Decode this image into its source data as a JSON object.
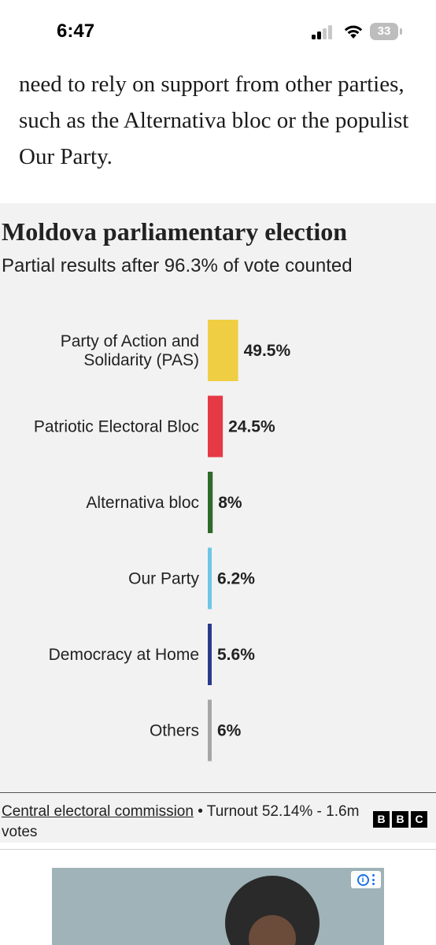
{
  "status_bar": {
    "time": "6:47",
    "battery": "33",
    "icons": [
      "cellular-signal-icon",
      "wifi-icon",
      "battery-icon"
    ]
  },
  "article": {
    "paragraph": "need to rely on support from other parties, such as the Alternativa bloc or the populist Our Party."
  },
  "chart": {
    "title": "Moldova parliamentary election",
    "subtitle": "Partial results after 96.3% of vote counted"
  },
  "chart_data": {
    "type": "bar",
    "orientation": "horizontal",
    "title": "Moldova parliamentary election",
    "subtitle": "Partial results after 96.3% of vote counted",
    "categories": [
      [
        "Party of Action and",
        "Solidarity (PAS)"
      ],
      [
        "Patriotic Electoral Bloc"
      ],
      [
        "Alternativa bloc"
      ],
      [
        "Our Party"
      ],
      [
        "Democracy at Home"
      ],
      [
        "Others"
      ]
    ],
    "values": [
      49.5,
      24.5,
      8,
      6.2,
      5.6,
      6
    ],
    "value_labels": [
      "49.5%",
      "24.5%",
      "8%",
      "6.2%",
      "5.6%",
      "6%"
    ],
    "colors": [
      "#f0ce44",
      "#e63946",
      "#2e6b2a",
      "#6ec6e6",
      "#2b3a8c",
      "#a6a6a6"
    ],
    "xlim": [
      0,
      100
    ],
    "grid": false,
    "legend": "none"
  },
  "footer": {
    "source_link": "Central electoral commission",
    "turnout_text": " • Turnout 52.14% - 1.6m votes",
    "logo_letters": [
      "B",
      "B",
      "C"
    ]
  },
  "ad": {
    "info_icon": "i"
  }
}
